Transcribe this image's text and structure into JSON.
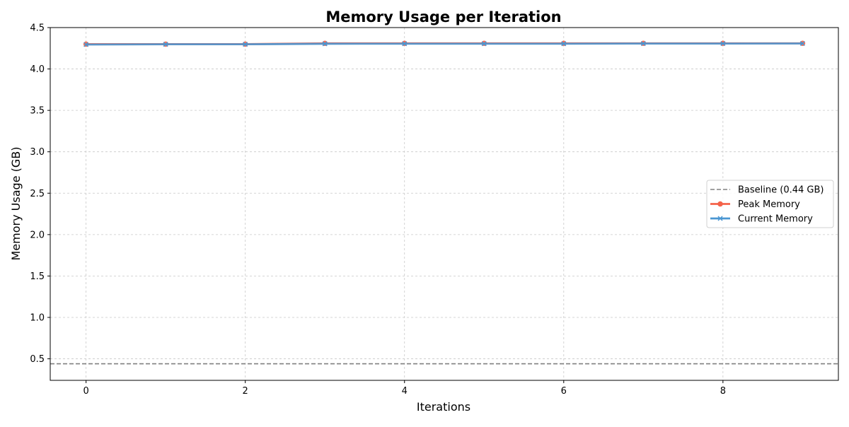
{
  "chart_data": {
    "type": "line",
    "title": "Memory Usage per Iteration",
    "xlabel": "Iterations",
    "ylabel": "Memory Usage (GB)",
    "xlim": [
      -0.45,
      9.45
    ],
    "ylim": [
      0.24,
      4.5
    ],
    "x_ticks": [
      0,
      2,
      4,
      6,
      8
    ],
    "y_ticks": [
      0.5,
      1.0,
      1.5,
      2.0,
      2.5,
      3.0,
      3.5,
      4.0,
      4.5
    ],
    "y_tick_labels": [
      "0.5",
      "1.0",
      "1.5",
      "2.0",
      "2.5",
      "3.0",
      "3.5",
      "4.0",
      "4.5"
    ],
    "grid": true,
    "legend_position": "center-right",
    "x": [
      0,
      1,
      2,
      3,
      4,
      5,
      6,
      7,
      8,
      9
    ],
    "baseline": {
      "name": "Baseline (0.44 GB)",
      "value": 0.44,
      "color": "#808080"
    },
    "series": [
      {
        "name": "Peak Memory",
        "color": "#f4634a",
        "marker": "circle",
        "values": [
          4.3,
          4.3,
          4.3,
          4.31,
          4.31,
          4.31,
          4.31,
          4.31,
          4.31,
          4.31
        ]
      },
      {
        "name": "Current Memory",
        "color": "#4a96d2",
        "marker": "x",
        "values": [
          4.295,
          4.298,
          4.298,
          4.304,
          4.305,
          4.305,
          4.305,
          4.307,
          4.307,
          4.308
        ]
      }
    ]
  }
}
